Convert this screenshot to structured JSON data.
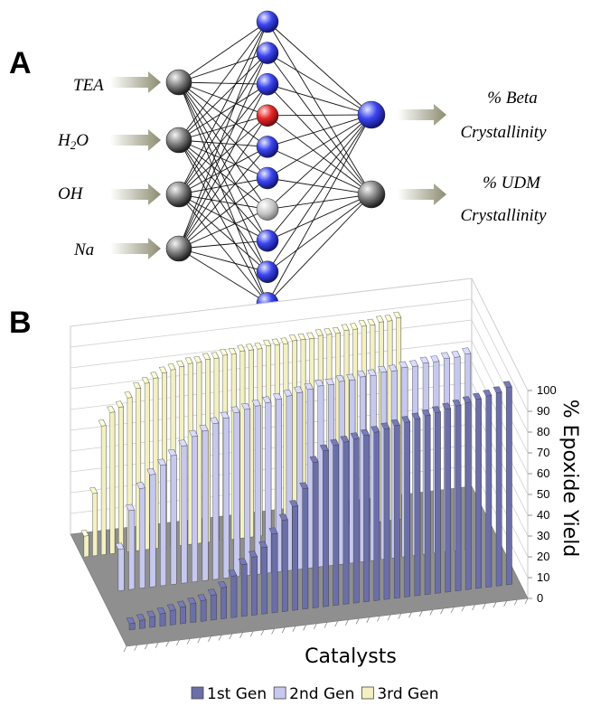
{
  "panel_a": {
    "letter": "A",
    "inputs": [
      "TEA",
      "H2O",
      "OH",
      "Na"
    ],
    "hidden_node_count": 10,
    "outputs": [
      {
        "line1": "% Beta",
        "line2": "Crystallinity"
      },
      {
        "line1": "% UDM",
        "line2": "Crystallinity"
      }
    ],
    "colors": {
      "input_node": "#3a3a3a",
      "hidden_node": "#3a40e8",
      "hidden_highlight": "#e02020",
      "hidden_neutral": "#b8b8b8",
      "output_1": "#3a40e8",
      "output_2": "#3a3a3a",
      "arrow": "#a0a088"
    }
  },
  "panel_b": {
    "letter": "B",
    "chart_data": {
      "type": "bar",
      "subtype": "3d-column",
      "xlabel": "Catalysts",
      "ylabel": "% Epoxide Yield",
      "ylim": [
        0,
        100
      ],
      "yticks": [
        0,
        10,
        20,
        30,
        40,
        50,
        60,
        70,
        80,
        90,
        100
      ],
      "grid": true,
      "legend": "bottom",
      "series": [
        {
          "name": "1st Gen",
          "color": "#6b6fa8",
          "values": [
            3,
            4,
            5,
            6,
            7,
            8,
            9,
            10,
            12,
            15,
            20,
            25,
            28,
            32,
            38,
            44,
            50,
            58,
            70,
            75,
            77,
            78,
            79,
            80,
            81,
            82,
            83,
            84,
            85,
            86,
            87,
            88,
            89,
            90,
            91,
            92,
            93,
            95
          ]
        },
        {
          "name": "2nd Gen",
          "color": "#c6c8ee",
          "values": [
            20,
            38,
            48,
            54,
            58,
            62,
            66,
            70,
            72,
            75,
            77,
            79,
            80,
            81,
            82,
            83,
            84,
            85,
            86,
            87,
            87,
            88,
            88,
            89,
            89,
            90,
            90,
            91,
            91,
            92,
            92,
            93,
            93,
            94
          ]
        },
        {
          "name": "3rd Gen",
          "color": "#f3f1c2",
          "values": [
            10,
            30,
            62,
            68,
            70,
            74,
            78,
            80,
            82,
            84,
            85,
            86,
            87,
            87,
            88,
            88,
            89,
            89,
            90,
            90,
            90,
            91,
            91,
            91,
            92,
            92,
            92,
            93,
            93,
            93,
            94,
            94,
            95,
            95,
            96,
            96,
            97
          ]
        }
      ]
    }
  }
}
